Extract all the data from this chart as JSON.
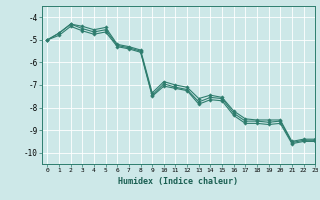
{
  "title": "",
  "xlabel": "Humidex (Indice chaleur)",
  "xlim": [
    -0.5,
    23
  ],
  "ylim": [
    -10.5,
    -3.5
  ],
  "yticks": [
    -10,
    -9,
    -8,
    -7,
    -6,
    -5,
    -4
  ],
  "xticks": [
    0,
    1,
    2,
    3,
    4,
    5,
    6,
    7,
    8,
    9,
    10,
    11,
    12,
    13,
    14,
    15,
    16,
    17,
    18,
    19,
    20,
    21,
    22,
    23
  ],
  "bg_color": "#cde8e8",
  "grid_color": "#ffffff",
  "line_color": "#2e7d6e",
  "line1_y": [
    -5.0,
    -4.7,
    -4.3,
    -4.5,
    -4.65,
    -4.55,
    -5.25,
    -5.35,
    -5.5,
    -7.45,
    -6.95,
    -7.1,
    -7.2,
    -7.75,
    -7.55,
    -7.6,
    -8.25,
    -8.6,
    -8.6,
    -8.65,
    -8.6,
    -9.55,
    -9.45,
    -9.45
  ],
  "line2_y": [
    -5.0,
    -4.7,
    -4.3,
    -4.4,
    -4.55,
    -4.45,
    -5.2,
    -5.3,
    -5.45,
    -7.35,
    -6.85,
    -7.0,
    -7.1,
    -7.6,
    -7.45,
    -7.55,
    -8.15,
    -8.5,
    -8.55,
    -8.55,
    -8.55,
    -9.5,
    -9.4,
    -9.4
  ],
  "line3_y": [
    -5.0,
    -4.8,
    -4.4,
    -4.6,
    -4.75,
    -4.65,
    -5.3,
    -5.4,
    -5.55,
    -7.5,
    -7.05,
    -7.15,
    -7.25,
    -7.85,
    -7.65,
    -7.7,
    -8.35,
    -8.7,
    -8.7,
    -8.75,
    -8.7,
    -9.6,
    -9.5,
    -9.5
  ]
}
